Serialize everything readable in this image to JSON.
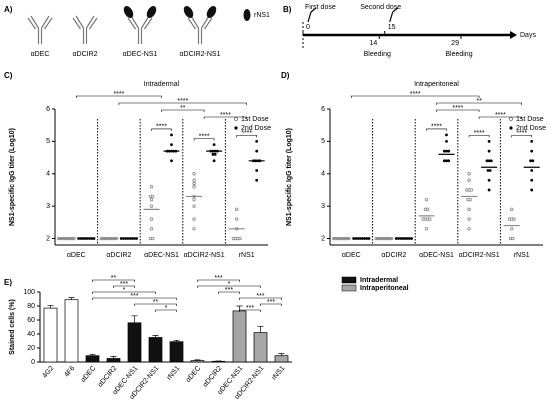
{
  "panel_a": {
    "letter": "A)",
    "labels": [
      "αDEC",
      "αDCIR2",
      "αDEC-NS1",
      "αDCIR2-NS1"
    ],
    "legend_label": "rNS1"
  },
  "panel_b": {
    "letter": "B)",
    "xlim": [
      0,
      38
    ],
    "axis_label": "Days",
    "doses": [
      {
        "day": 0,
        "label": "First dose"
      },
      {
        "day": 15,
        "label": "Second dose"
      }
    ],
    "bleedings": [
      {
        "day": 14,
        "label": "Bleeding"
      },
      {
        "day": 29,
        "label": "Bleeding"
      }
    ]
  },
  "chart_data": [
    {
      "type": "dot",
      "panel_label": "C)",
      "title": "Intradermal",
      "y_label": "NS1-specific IgG titer (Log10)",
      "categories": [
        "αDEC",
        "αDCIR2",
        "αDEC-NS1",
        "αDCIR2-NS1",
        "rNS1"
      ],
      "ylim": [
        1.8,
        6
      ],
      "yticks": [
        2,
        3,
        4,
        5,
        6
      ],
      "series": [
        {
          "name": "1st Dose",
          "color": "#888888",
          "values": [
            [
              2,
              2,
              2,
              2,
              2,
              2,
              2,
              2
            ],
            [
              2,
              2,
              2,
              2,
              2,
              2,
              2,
              2
            ],
            [
              3.6,
              3.3,
              3.3,
              3.2,
              3.0,
              2.6,
              2.3,
              2.0,
              2.0
            ],
            [
              4.0,
              3.8,
              3.7,
              3.6,
              3.3,
              3.2,
              3.0,
              2.6,
              2.3
            ],
            [
              2.9,
              2.6,
              2.3,
              2.0,
              2.0,
              2.0,
              2.0
            ]
          ],
          "mean": [
            2,
            2,
            2.9,
            3.3,
            2.3
          ]
        },
        {
          "name": "2nd Dose",
          "color": "#000000",
          "values": [
            [
              2,
              2,
              2,
              2,
              2,
              2,
              2,
              2
            ],
            [
              2,
              2,
              2,
              2,
              2,
              2,
              2,
              2
            ],
            [
              5.2,
              4.9,
              4.7,
              4.7,
              4.7,
              4.7,
              4.7,
              4.4
            ],
            [
              4.9,
              4.7,
              4.7,
              4.7,
              4.7,
              4.6,
              4.6,
              4.4
            ],
            [
              5.0,
              4.7,
              4.4,
              4.4,
              4.4,
              4.4,
              4.1,
              3.8
            ]
          ],
          "mean": [
            2,
            2,
            4.7,
            4.7,
            4.4
          ]
        }
      ],
      "comparisons": [
        {
          "pair": [
            0,
            2
          ],
          "label": "****"
        },
        {
          "pair": [
            1,
            4
          ],
          "label": "****"
        },
        {
          "pair": [
            2,
            3
          ],
          "label": "**"
        },
        {
          "pair": [
            3,
            4
          ],
          "label": "****"
        },
        {
          "pair": [
            2,
            2
          ],
          "label": "****"
        },
        {
          "pair": [
            3,
            3
          ],
          "label": "****"
        },
        {
          "pair": [
            4,
            4
          ],
          "label": "****"
        }
      ]
    },
    {
      "type": "dot",
      "panel_label": "D)",
      "title": "Intraperitoneal",
      "y_label": "NS1-specific IgG titer (Log10)",
      "categories": [
        "αDEC",
        "αDCIR2",
        "αDEC-NS1",
        "αDCIR2-NS1",
        "rNS1"
      ],
      "ylim": [
        1.8,
        6
      ],
      "yticks": [
        2,
        3,
        4,
        5,
        6
      ],
      "series": [
        {
          "name": "1st Dose",
          "color": "#888888",
          "values": [
            [
              2,
              2,
              2,
              2,
              2,
              2,
              2,
              2
            ],
            [
              2,
              2,
              2,
              2,
              2,
              2,
              2,
              2
            ],
            [
              3.2,
              2.9,
              2.9,
              2.6,
              2.6,
              2.6,
              2.6,
              2.3
            ],
            [
              4.0,
              3.8,
              3.5,
              3.5,
              3.5,
              3.2,
              3.2,
              2.9,
              2.6,
              2.3
            ],
            [
              2.9,
              2.6,
              2.6,
              2.6,
              2.3,
              2.0,
              2.0
            ]
          ],
          "mean": [
            2,
            2,
            2.7,
            3.3,
            2.4
          ]
        },
        {
          "name": "2nd Dose",
          "color": "#000000",
          "values": [
            [
              2,
              2,
              2,
              2,
              2,
              2,
              2,
              2
            ],
            [
              2,
              2,
              2,
              2,
              2,
              2,
              2,
              2
            ],
            [
              5.2,
              5.0,
              4.7,
              4.7,
              4.7,
              4.4,
              4.4,
              4.4
            ],
            [
              5.0,
              4.7,
              4.4,
              4.4,
              4.4,
              4.1,
              4.1,
              3.8,
              3.5
            ],
            [
              5.0,
              4.7,
              4.4,
              4.4,
              4.1,
              3.8,
              3.5
            ]
          ],
          "mean": [
            2,
            2,
            4.6,
            4.2,
            4.2
          ]
        }
      ],
      "comparisons": [
        {
          "pair": [
            0,
            3
          ],
          "label": "****"
        },
        {
          "pair": [
            2,
            4
          ],
          "label": "**"
        },
        {
          "pair": [
            2,
            3
          ],
          "label": "****"
        },
        {
          "pair": [
            3,
            4
          ],
          "label": "****"
        },
        {
          "pair": [
            2,
            2
          ],
          "label": "****"
        },
        {
          "pair": [
            3,
            3
          ],
          "label": "****"
        },
        {
          "pair": [
            4,
            4
          ],
          "label": "****"
        }
      ]
    },
    {
      "type": "bar",
      "panel_label": "E)",
      "y_label": "Stained cells (%)",
      "categories": [
        "4G2",
        "4F6",
        "αDEC",
        "αDCIR2",
        "αDEC-NS1",
        "αDCIR2-NS1",
        "rNS1",
        "αDEC",
        "αDCIR2",
        "αDEC-NS1",
        "αDCIR2-NS1",
        "rNS1"
      ],
      "values": [
        77,
        89,
        9,
        5,
        56,
        35,
        29,
        2,
        1,
        73,
        42,
        9
      ],
      "errors": [
        4,
        3,
        2,
        3,
        10,
        3,
        2,
        1,
        0.5,
        7,
        9,
        3
      ],
      "color": "#ffffff",
      "ylim": [
        0,
        100
      ],
      "yticks": [
        0,
        20,
        40,
        60,
        80,
        100
      ],
      "series": [
        {
          "name": "Intradermal",
          "color": "#111111",
          "members": [
            2,
            3,
            4,
            5,
            6
          ]
        },
        {
          "name": "Intraperitoneal",
          "color": "#a6a6a6",
          "members": [
            7,
            8,
            9,
            10,
            11
          ]
        }
      ],
      "comparisons": [
        {
          "pair": [
            2,
            4
          ],
          "label": "**"
        },
        {
          "pair": [
            3,
            4
          ],
          "label": "***"
        },
        {
          "pair": [
            2,
            5
          ],
          "label": "*"
        },
        {
          "pair": [
            2,
            6
          ],
          "label": "***"
        },
        {
          "pair": [
            4,
            6
          ],
          "label": "**"
        },
        {
          "pair": [
            5,
            6
          ],
          "label": "*"
        },
        {
          "pair": [
            7,
            9
          ],
          "label": "***"
        },
        {
          "pair": [
            7,
            10
          ],
          "label": "*"
        },
        {
          "pair": [
            8,
            9
          ],
          "label": "***"
        },
        {
          "pair": [
            9,
            11
          ],
          "label": "***"
        },
        {
          "pair": [
            10,
            11
          ],
          "label": "***"
        },
        {
          "pair": [
            9,
            10
          ],
          "label": "***"
        }
      ]
    }
  ]
}
